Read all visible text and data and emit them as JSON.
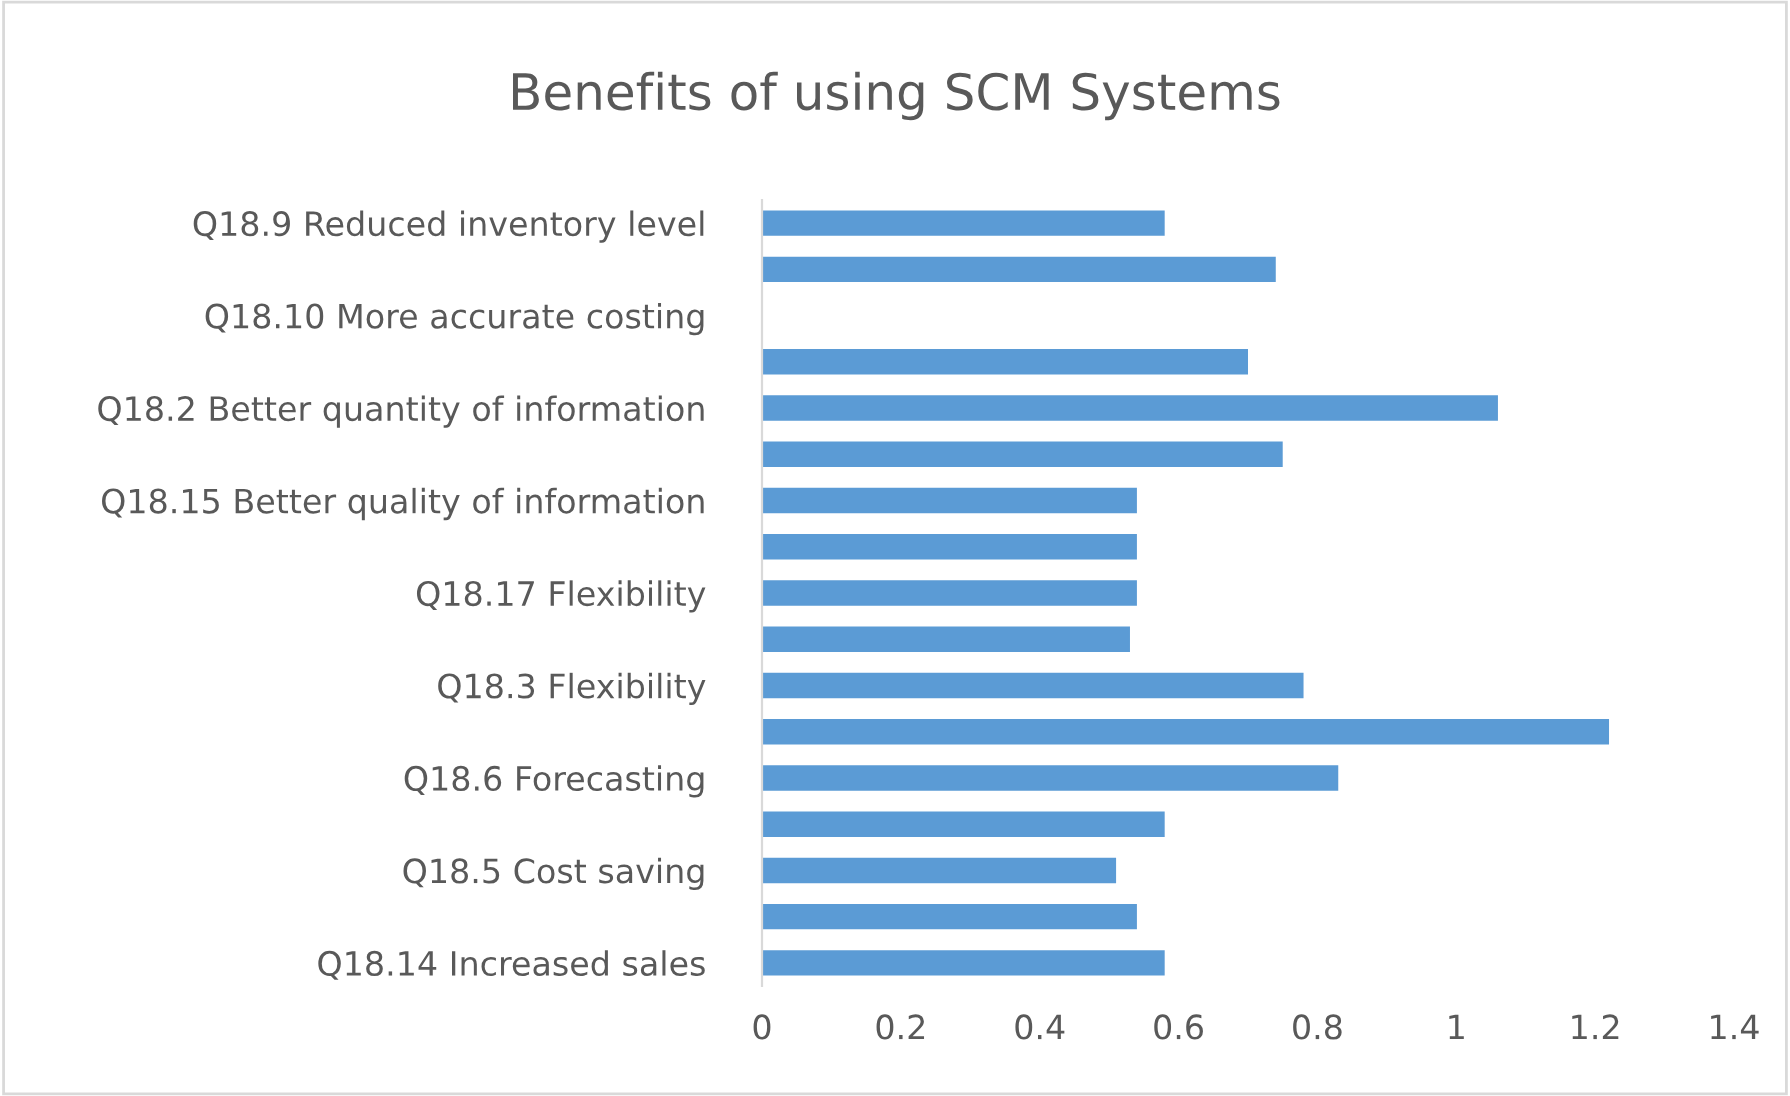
{
  "chart_data": {
    "type": "bar",
    "orientation": "horizontal",
    "title": "Benefits of using SCM Systems",
    "categories": [
      "Q18.9 Reduced inventory level",
      null,
      "Q18.10 More accurate costing",
      null,
      "Q18.2 Better quantity of information",
      null,
      "Q18.15 Better quality of information",
      null,
      "Q18.17 Flexibility",
      null,
      "Q18.3 Flexibility",
      null,
      "Q18.6 Forecasting",
      null,
      "Q18.5 Cost saving",
      null,
      "Q18.14 Increased sales"
    ],
    "values": [
      0.58,
      0.74,
      null,
      0.7,
      1.06,
      0.75,
      0.54,
      0.54,
      0.54,
      0.53,
      0.78,
      1.22,
      0.83,
      0.58,
      0.51,
      0.54,
      0.58
    ],
    "color": "#5b9bd5",
    "xlim": [
      0,
      1.4
    ],
    "xticks": [
      0,
      0.2,
      0.4,
      0.6,
      0.8,
      1,
      1.2,
      1.4
    ],
    "grid": false,
    "legend": false
  }
}
